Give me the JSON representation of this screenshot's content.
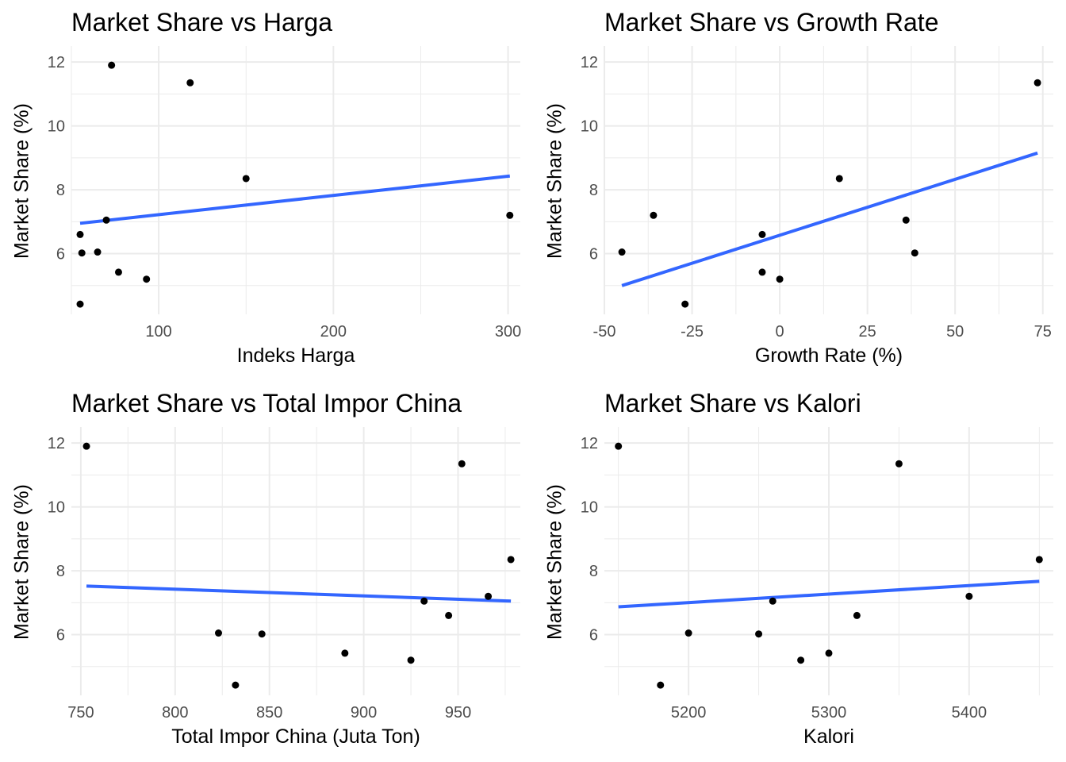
{
  "chart_data": [
    {
      "type": "scatter",
      "title": "Market Share vs Harga",
      "xlabel": "Indeks Harga",
      "ylabel": "Market Share (%)",
      "xlim": [
        50,
        307
      ],
      "ylim": [
        4.1,
        12.5
      ],
      "xticks": [
        100,
        200,
        300
      ],
      "xtick_labels": [
        "100",
        "200",
        "300"
      ],
      "xminor": [
        50,
        150,
        250
      ],
      "yticks": [
        6,
        8,
        10,
        12
      ],
      "ytick_labels": [
        "6",
        "8",
        "10",
        "12"
      ],
      "yminor": [
        5,
        7,
        9,
        11
      ],
      "grid": true,
      "series": [
        {
          "type": "points",
          "x": [
            73,
            118,
            55,
            150,
            70,
            301,
            56,
            65,
            77,
            93,
            55
          ],
          "y": [
            11.9,
            11.35,
            6.6,
            8.35,
            7.05,
            7.2,
            6.02,
            6.05,
            5.42,
            5.2,
            4.42
          ]
        },
        {
          "type": "fit_line",
          "x": [
            55,
            301
          ],
          "y": [
            6.95,
            8.43
          ]
        }
      ]
    },
    {
      "type": "scatter",
      "title": "Market Share vs Growth Rate",
      "xlabel": "Growth Rate (%)",
      "ylabel": "Market Share (%)",
      "xlim": [
        -50,
        78
      ],
      "ylim": [
        4.1,
        12.5
      ],
      "xticks": [
        -50,
        -25,
        0,
        25,
        50,
        75
      ],
      "xtick_labels": [
        "-50",
        "-25",
        "0",
        "25",
        "50",
        "75"
      ],
      "xminor": [
        -37.5,
        -12.5,
        12.5,
        37.5,
        62.5
      ],
      "yticks": [
        6,
        8,
        10,
        12
      ],
      "ytick_labels": [
        "6",
        "8",
        "10",
        "12"
      ],
      "yminor": [
        5,
        7,
        9,
        11
      ],
      "grid": true,
      "series": [
        {
          "type": "points",
          "x": [
            -45,
            -36,
            -27,
            -5,
            -5,
            0,
            17,
            36,
            38.5,
            73.5
          ],
          "y": [
            6.05,
            7.2,
            4.42,
            6.6,
            5.42,
            5.2,
            8.35,
            7.05,
            6.02,
            11.35
          ]
        },
        {
          "type": "fit_line",
          "x": [
            -45,
            73.5
          ],
          "y": [
            5.0,
            9.15
          ]
        }
      ]
    },
    {
      "type": "scatter",
      "title": "Market Share vs Total Impor China",
      "xlabel": "Total Impor China (Juta Ton)",
      "ylabel": "Market Share (%)",
      "xlim": [
        745,
        983
      ],
      "ylim": [
        4.1,
        12.5
      ],
      "xticks": [
        750,
        800,
        850,
        900,
        950
      ],
      "xtick_labels": [
        "750",
        "800",
        "850",
        "900",
        "950"
      ],
      "xminor": [
        775,
        825,
        875,
        925,
        975
      ],
      "yticks": [
        6,
        8,
        10,
        12
      ],
      "ytick_labels": [
        "6",
        "8",
        "10",
        "12"
      ],
      "yminor": [
        5,
        7,
        9,
        11
      ],
      "grid": true,
      "series": [
        {
          "type": "points",
          "x": [
            753,
            823,
            832,
            846,
            890,
            925,
            932,
            945,
            952,
            966,
            978
          ],
          "y": [
            11.9,
            6.05,
            4.42,
            6.02,
            5.42,
            5.2,
            7.05,
            6.6,
            11.35,
            7.2,
            8.35
          ]
        },
        {
          "type": "fit_line",
          "x": [
            753,
            978
          ],
          "y": [
            7.52,
            7.05
          ]
        }
      ]
    },
    {
      "type": "scatter",
      "title": "Market Share vs Kalori",
      "xlabel": "Kalori",
      "ylabel": "Market Share (%)",
      "xlim": [
        5140,
        5460
      ],
      "ylim": [
        4.1,
        12.5
      ],
      "xticks": [
        5200,
        5300,
        5400
      ],
      "xtick_labels": [
        "5200",
        "5300",
        "5400"
      ],
      "xminor": [
        5150,
        5250,
        5350,
        5450
      ],
      "yticks": [
        6,
        8,
        10,
        12
      ],
      "ytick_labels": [
        "6",
        "8",
        "10",
        "12"
      ],
      "yminor": [
        5,
        7,
        9,
        11
      ],
      "grid": true,
      "series": [
        {
          "type": "points",
          "x": [
            5150,
            5180,
            5200,
            5250,
            5260,
            5280,
            5300,
            5320,
            5350,
            5400,
            5450
          ],
          "y": [
            11.9,
            4.42,
            6.05,
            6.02,
            7.05,
            5.2,
            5.42,
            6.6,
            11.35,
            7.2,
            8.35
          ]
        },
        {
          "type": "fit_line",
          "x": [
            5150,
            5450
          ],
          "y": [
            6.87,
            7.67
          ]
        }
      ]
    }
  ],
  "colors": {
    "points": "#000000",
    "fit_line": "#3366ff",
    "grid": "#ebebeb",
    "tick_text": "#4d4d4d"
  }
}
